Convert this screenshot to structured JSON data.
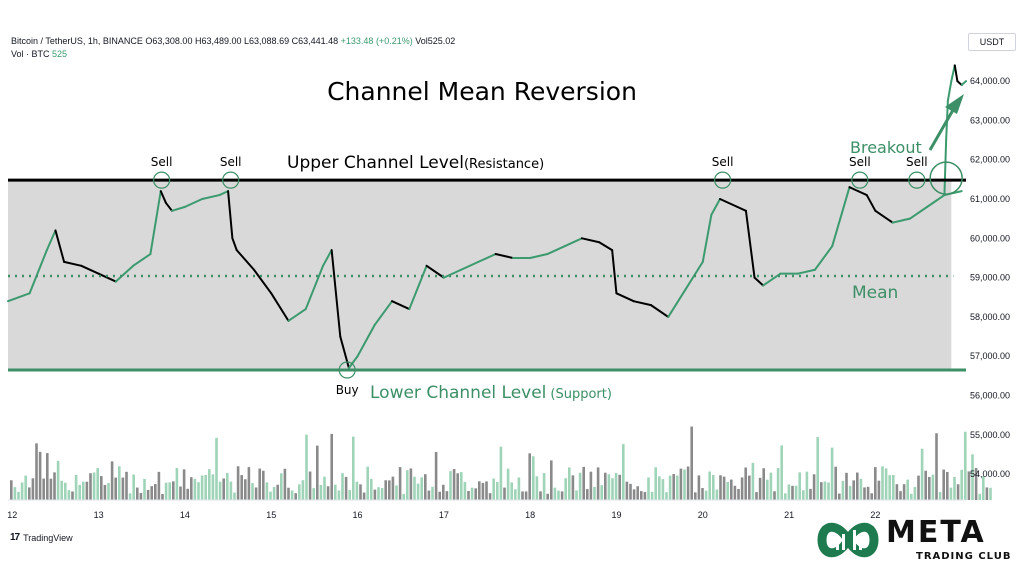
{
  "header": {
    "symbol": "Bitcoin / TetherUS, 1h, BINANCE",
    "open": "O63,308.00",
    "high": "H63,489.00",
    "low": "L63,088.69",
    "close": "C63,441.48",
    "change": "+133.48 (+0.21%)",
    "volume": "Vol525.02",
    "vol_label": "Vol · BTC",
    "vol_value": "525"
  },
  "currency": "USDT",
  "footer": {
    "tradingview": "TradingView"
  },
  "brand": {
    "name": "META",
    "sub": "TRADING CLUB"
  },
  "annotations": {
    "title": "Channel Mean Reversion",
    "upper": "Upper Channel Level",
    "upper_sub": "(Resistance)",
    "lower": "Lower Channel Level",
    "lower_sub": "(Support)",
    "mean": "Mean",
    "breakout": "Breakout",
    "sell": "Sell",
    "buy": "Buy"
  },
  "colors": {
    "up": "#7cc4a0",
    "up_line": "#3c9a6f",
    "down": "#000000",
    "channel_fill": "#d9d9d9",
    "accent_green": "#3c8f66",
    "volume_up": "#9fd4b8",
    "volume_down": "#8a8a8a"
  },
  "chart_data": {
    "type": "line",
    "title": "Channel Mean Reversion",
    "x_ticks": [
      "12",
      "13",
      "14",
      "15",
      "16",
      "17",
      "18",
      "19",
      "20",
      "21",
      "22"
    ],
    "y_ticks": [
      "64,000.00",
      "63,000.00",
      "62,000.00",
      "61,000.00",
      "60,000.00",
      "59,000.00",
      "58,000.00",
      "57,000.00",
      "56,000.00",
      "55,000.00",
      "54,000.00"
    ],
    "ylim": [
      53800,
      65300
    ],
    "x_range": [
      11.95,
      23.05
    ],
    "levels": {
      "upper": 61480,
      "mean": 59040,
      "lower": 56650
    },
    "series": [
      {
        "name": "BTCUSDT",
        "x": [
          11.95,
          12.2,
          12.4,
          12.5,
          12.6,
          12.8,
          13.0,
          13.2,
          13.4,
          13.6,
          13.72,
          13.78,
          13.85,
          14.0,
          14.2,
          14.4,
          14.5,
          14.55,
          14.6,
          14.8,
          15.0,
          15.2,
          15.4,
          15.6,
          15.7,
          15.8,
          15.9,
          16.0,
          16.2,
          16.4,
          16.6,
          16.8,
          17.0,
          17.2,
          17.4,
          17.6,
          17.8,
          18.0,
          18.2,
          18.4,
          18.6,
          18.8,
          18.95,
          19.0,
          19.2,
          19.4,
          19.6,
          19.8,
          20.0,
          20.1,
          20.2,
          20.4,
          20.5,
          20.6,
          20.7,
          20.9,
          21.1,
          21.3,
          21.5,
          21.7,
          21.8,
          21.9,
          22.0,
          22.2,
          22.4,
          22.6,
          22.8,
          23.0
        ],
        "values": [
          58400,
          58600,
          59700,
          60200,
          59400,
          59300,
          59100,
          58900,
          59300,
          59600,
          61200,
          60900,
          60700,
          60800,
          61000,
          61100,
          61200,
          60000,
          59700,
          59200,
          58600,
          57900,
          58200,
          59300,
          59700,
          57500,
          56700,
          57000,
          57800,
          58400,
          58200,
          59300,
          59000,
          59200,
          59400,
          59600,
          59500,
          59500,
          59600,
          59800,
          60000,
          59900,
          59700,
          58600,
          58400,
          58300,
          58000,
          58700,
          59400,
          60600,
          61000,
          60800,
          60700,
          59000,
          58800,
          59100,
          59100,
          59200,
          59800,
          61300,
          61200,
          61100,
          60700,
          60400,
          60500,
          60800,
          61100,
          61200
        ]
      },
      {
        "name": "Breakout",
        "x": [
          22.8,
          22.82,
          22.84,
          22.88,
          22.92,
          22.95,
          23.0,
          23.05
        ],
        "values": [
          61100,
          62500,
          63500,
          64000,
          64400,
          64000,
          63900,
          64000
        ]
      }
    ],
    "signals": [
      {
        "label": "Sell",
        "x": 13.73,
        "value": 61480
      },
      {
        "label": "Sell",
        "x": 14.53,
        "value": 61480
      },
      {
        "label": "Buy",
        "x": 15.88,
        "value": 56650
      },
      {
        "label": "Sell",
        "x": 20.23,
        "value": 61480
      },
      {
        "label": "Sell",
        "x": 21.82,
        "value": 61480
      },
      {
        "label": "Sell",
        "x": 22.48,
        "value": 61480
      }
    ]
  }
}
